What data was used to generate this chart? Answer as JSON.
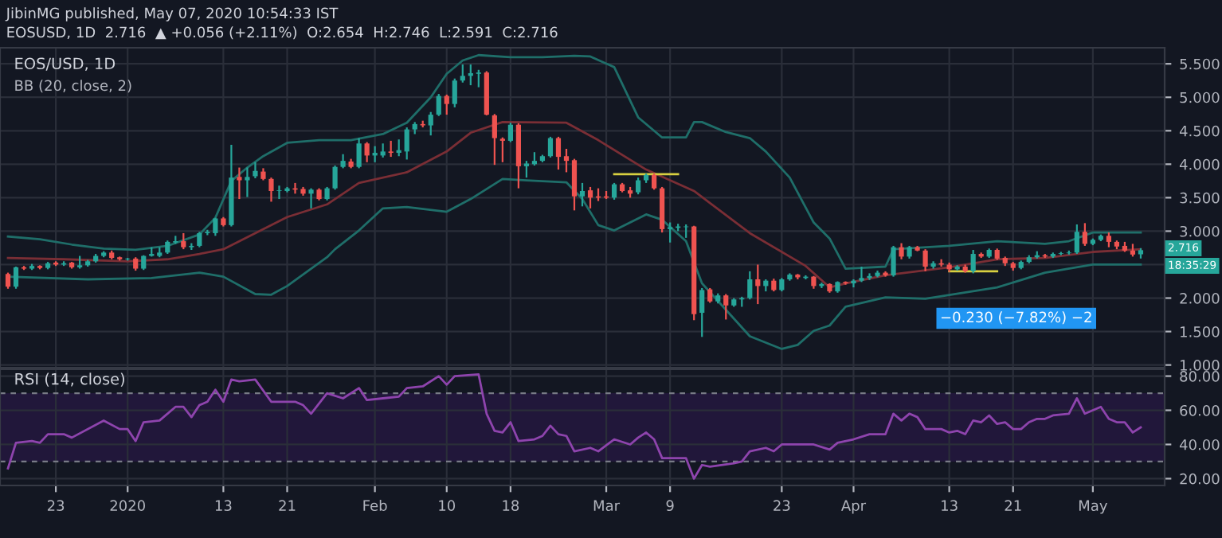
{
  "chart_data": [
    {
      "type": "candlestick",
      "title": "EOS/USD, 1D",
      "subtitle": "BB (20, close, 2)",
      "annotations": [
        "JibinMG published, May 07, 2020 10:54:33 IST",
        "EOSUSD, 1D  2.716  ▲ +0.056 (+2.11%)  O:2.654  H:2.746  L:2.591  C:2.716",
        "2.716",
        "18:35:29",
        "−0.230 (−7.82%) −2"
      ],
      "colors": [
        "#ef5350",
        "#26a69a",
        "#ef5350",
        "#26a69a",
        "#ef5350",
        "#26a69a",
        "#ef5350",
        "#26a69a",
        "#ef5350",
        "#26a69a",
        "#26a69a",
        "#26a69a",
        "#26a69a",
        "#ef5350",
        "#ef5350",
        "#26a69a",
        "#ef5350",
        "#26a69a",
        "#26a69a",
        "#26a69a",
        "#26a69a",
        "#26a69a",
        "#ef5350",
        "#26a69a",
        "#26a69a",
        "#26a69a",
        "#26a69a",
        "#ef5350",
        "#26a69a",
        "#ef5350",
        "#26a69a",
        "#26a69a",
        "#ef5350",
        "#ef5350",
        "#26a69a",
        "#26a69a",
        "#ef5350",
        "#ef5350",
        "#26a69a",
        "#ef5350",
        "#26a69a",
        "#26a69a",
        "#26a69a",
        "#ef5350",
        "#26a69a",
        "#ef5350",
        "#26a69a",
        "#26a69a",
        "#ef5350",
        "#26a69a",
        "#26a69a",
        "#26a69a",
        "#ef5350",
        "#26a69a",
        "#26a69a",
        "#ef5350",
        "#26a69a",
        "#26a69a",
        "#26a69a",
        "#26a69a",
        "#ef5350",
        "#ef5350",
        "#ef5350",
        "#26a69a",
        "#ef5350",
        "#26a69a",
        "#26a69a",
        "#26a69a",
        "#26a69a",
        "#ef5350",
        "#ef5350",
        "#ef5350",
        "#26a69a",
        "#ef5350",
        "#ef5350",
        "#ef5350",
        "#26a69a",
        "#ef5350",
        "#ef5350",
        "#26a69a",
        "#26a69a",
        "#ef5350",
        "#ef5350",
        "#26a69a",
        "#26a69a",
        "#26a69a",
        "#ef5350",
        "#26a69a",
        "#ef5350",
        "#26a69a",
        "#ef5350",
        "#26a69a",
        "#26a69a",
        "#26a69a",
        "#ef5350",
        "#26a69a",
        "#ef5350",
        "#26a69a",
        "#26a69a",
        "#ef5350",
        "#26a69a",
        "#ef5350",
        "#26a69a",
        "#ef5350",
        "#26a69a",
        "#ef5350",
        "#26a69a",
        "#26a69a",
        "#26a69a",
        "#26a69a",
        "#ef5350",
        "#26a69a",
        "#ef5350",
        "#26a69a",
        "#ef5350",
        "#ef5350",
        "#26a69a",
        "#ef5350",
        "#ef5350",
        "#26a69a",
        "#ef5350",
        "#26a69a",
        "#ef5350",
        "#26a69a",
        "#ef5350",
        "#ef5350",
        "#ef5350",
        "#26a69a",
        "#26a69a",
        "#26a69a",
        "#ef5350",
        "#26a69a",
        "#26a69a",
        "#26a69a",
        "#26a69a",
        "#ef5350",
        "#26a69a",
        "#26a69a",
        "#ef5350",
        "#ef5350",
        "#ef5350",
        "#ef5350",
        "#26a69a"
      ],
      "x": [
        "2019-12-17",
        "2019-12-18",
        "2019-12-19",
        "2019-12-20",
        "2019-12-21",
        "2019-12-22",
        "2019-12-23",
        "2019-12-24",
        "2019-12-25",
        "2019-12-26",
        "2019-12-27",
        "2019-12-28",
        "2019-12-29",
        "2019-12-30",
        "2019-12-31",
        "2020-01-01",
        "2020-01-02",
        "2020-01-03",
        "2020-01-04",
        "2020-01-05",
        "2020-01-06",
        "2020-01-07",
        "2020-01-08",
        "2020-01-09",
        "2020-01-10",
        "2020-01-11",
        "2020-01-12",
        "2020-01-13",
        "2020-01-14",
        "2020-01-15",
        "2020-01-16",
        "2020-01-17",
        "2020-01-18",
        "2020-01-19",
        "2020-01-20",
        "2020-01-21",
        "2020-01-22",
        "2020-01-23",
        "2020-01-24",
        "2020-01-25",
        "2020-01-26",
        "2020-01-27",
        "2020-01-28",
        "2020-01-29",
        "2020-01-30",
        "2020-01-31",
        "2020-02-01",
        "2020-02-02",
        "2020-02-03",
        "2020-02-04",
        "2020-02-05",
        "2020-02-06",
        "2020-02-07",
        "2020-02-08",
        "2020-02-09",
        "2020-02-10",
        "2020-02-11",
        "2020-02-12",
        "2020-02-13",
        "2020-02-14",
        "2020-02-15",
        "2020-02-16",
        "2020-02-17",
        "2020-02-18",
        "2020-02-19",
        "2020-02-20",
        "2020-02-21",
        "2020-02-22",
        "2020-02-23",
        "2020-02-24",
        "2020-02-25",
        "2020-02-26",
        "2020-02-27",
        "2020-02-28",
        "2020-02-29",
        "2020-03-01",
        "2020-03-02",
        "2020-03-03",
        "2020-03-04",
        "2020-03-05",
        "2020-03-06",
        "2020-03-07",
        "2020-03-08",
        "2020-03-09",
        "2020-03-10",
        "2020-03-11",
        "2020-03-12",
        "2020-03-13",
        "2020-03-14",
        "2020-03-15",
        "2020-03-16",
        "2020-03-17",
        "2020-03-18",
        "2020-03-19",
        "2020-03-20",
        "2020-03-21",
        "2020-03-22",
        "2020-03-23",
        "2020-03-24",
        "2020-03-25",
        "2020-03-26",
        "2020-03-27",
        "2020-03-28",
        "2020-03-29",
        "2020-03-30",
        "2020-03-31",
        "2020-04-01",
        "2020-04-02",
        "2020-04-03",
        "2020-04-04",
        "2020-04-05",
        "2020-04-06",
        "2020-04-07",
        "2020-04-08",
        "2020-04-09",
        "2020-04-10",
        "2020-04-11",
        "2020-04-12",
        "2020-04-13",
        "2020-04-14",
        "2020-04-15",
        "2020-04-16",
        "2020-04-17",
        "2020-04-18",
        "2020-04-19",
        "2020-04-20",
        "2020-04-21",
        "2020-04-22",
        "2020-04-23",
        "2020-04-24",
        "2020-04-25",
        "2020-04-26",
        "2020-04-27",
        "2020-04-28",
        "2020-04-29",
        "2020-04-30",
        "2020-05-01",
        "2020-05-02",
        "2020-05-03",
        "2020-05-04",
        "2020-05-05",
        "2020-05-06",
        "2020-05-07"
      ],
      "ohlc": [
        [
          2.36,
          2.38,
          2.14,
          2.17
        ],
        [
          2.17,
          2.47,
          2.14,
          2.46
        ],
        [
          2.46,
          2.48,
          2.42,
          2.44
        ],
        [
          2.44,
          2.51,
          2.42,
          2.48
        ],
        [
          2.48,
          2.49,
          2.43,
          2.45
        ],
        [
          2.45,
          2.54,
          2.43,
          2.52
        ],
        [
          2.53,
          2.55,
          2.48,
          2.5
        ],
        [
          2.5,
          2.55,
          2.48,
          2.52
        ],
        [
          2.53,
          2.54,
          2.44,
          2.46
        ],
        [
          2.46,
          2.63,
          2.44,
          2.49
        ],
        [
          2.49,
          2.57,
          2.47,
          2.55
        ],
        [
          2.55,
          2.66,
          2.53,
          2.63
        ],
        [
          2.63,
          2.7,
          2.61,
          2.68
        ],
        [
          2.68,
          2.71,
          2.58,
          2.6
        ],
        [
          2.61,
          2.62,
          2.56,
          2.58
        ],
        [
          2.58,
          2.6,
          2.56,
          2.59
        ],
        [
          2.59,
          2.61,
          2.41,
          2.44
        ],
        [
          2.44,
          2.64,
          2.42,
          2.63
        ],
        [
          2.63,
          2.76,
          2.62,
          2.66
        ],
        [
          2.63,
          2.76,
          2.61,
          2.68
        ],
        [
          2.68,
          2.86,
          2.66,
          2.84
        ],
        [
          2.83,
          2.93,
          2.81,
          2.85
        ],
        [
          2.85,
          2.97,
          2.73,
          2.76
        ],
        [
          2.76,
          2.82,
          2.72,
          2.78
        ],
        [
          2.78,
          2.99,
          2.76,
          2.97
        ],
        [
          2.97,
          3.02,
          2.94,
          2.99
        ],
        [
          2.97,
          3.2,
          2.93,
          3.19
        ],
        [
          3.19,
          3.21,
          3.07,
          3.09
        ],
        [
          3.09,
          4.29,
          3.07,
          3.8
        ],
        [
          3.81,
          3.95,
          3.48,
          3.76
        ],
        [
          3.76,
          3.95,
          3.51,
          3.81
        ],
        [
          3.82,
          4.03,
          3.79,
          3.9
        ],
        [
          3.89,
          3.94,
          3.76,
          3.78
        ],
        [
          3.78,
          3.8,
          3.44,
          3.6
        ],
        [
          3.6,
          3.68,
          3.48,
          3.61
        ],
        [
          3.6,
          3.66,
          3.58,
          3.64
        ],
        [
          3.64,
          3.72,
          3.56,
          3.62
        ],
        [
          3.63,
          3.66,
          3.53,
          3.56
        ],
        [
          3.56,
          3.64,
          3.34,
          3.62
        ],
        [
          3.62,
          3.64,
          3.46,
          3.48
        ],
        [
          3.48,
          3.66,
          3.46,
          3.64
        ],
        [
          3.64,
          3.98,
          3.62,
          3.96
        ],
        [
          3.96,
          4.15,
          3.94,
          4.05
        ],
        [
          4.04,
          4.08,
          3.94,
          3.96
        ],
        [
          3.96,
          4.39,
          3.94,
          4.31
        ],
        [
          4.31,
          4.33,
          4.03,
          4.13
        ],
        [
          4.13,
          4.27,
          4.03,
          4.17
        ],
        [
          4.13,
          4.31,
          4.1,
          4.19
        ],
        [
          4.19,
          4.35,
          4.11,
          4.17
        ],
        [
          4.17,
          4.37,
          4.12,
          4.21
        ],
        [
          4.19,
          4.55,
          4.07,
          4.52
        ],
        [
          4.52,
          4.63,
          4.45,
          4.6
        ],
        [
          4.6,
          4.65,
          4.55,
          4.58
        ],
        [
          4.58,
          4.78,
          4.43,
          4.74
        ],
        [
          4.74,
          5.05,
          4.72,
          5.02
        ],
        [
          5.02,
          5.04,
          4.74,
          4.9
        ],
        [
          4.9,
          5.28,
          4.85,
          5.25
        ],
        [
          5.25,
          5.49,
          5.22,
          5.32
        ],
        [
          5.32,
          5.49,
          5.18,
          5.36
        ],
        [
          5.35,
          5.41,
          5.15,
          5.37
        ],
        [
          5.37,
          5.39,
          4.73,
          4.74
        ],
        [
          4.73,
          4.75,
          3.99,
          4.39
        ],
        [
          4.38,
          4.4,
          4.03,
          4.35
        ],
        [
          4.35,
          4.62,
          4.33,
          4.59
        ],
        [
          4.59,
          4.61,
          3.64,
          3.97
        ],
        [
          3.97,
          4.05,
          3.8,
          4.01
        ],
        [
          4.0,
          4.18,
          3.98,
          4.05
        ],
        [
          4.05,
          4.14,
          4.03,
          4.12
        ],
        [
          4.12,
          4.41,
          4.1,
          4.39
        ],
        [
          4.39,
          4.41,
          3.92,
          4.11
        ],
        [
          4.12,
          4.23,
          3.88,
          4.05
        ],
        [
          4.06,
          4.08,
          3.31,
          3.52
        ],
        [
          3.52,
          3.72,
          3.37,
          3.6
        ],
        [
          3.61,
          3.66,
          3.34,
          3.5
        ],
        [
          3.52,
          3.64,
          3.45,
          3.5
        ],
        [
          3.52,
          3.6,
          3.48,
          3.5
        ],
        [
          3.5,
          3.72,
          3.47,
          3.7
        ],
        [
          3.7,
          3.72,
          3.58,
          3.6
        ],
        [
          3.61,
          3.66,
          3.5,
          3.56
        ],
        [
          3.58,
          3.8,
          3.55,
          3.76
        ],
        [
          3.76,
          3.86,
          3.72,
          3.84
        ],
        [
          3.84,
          3.86,
          3.62,
          3.64
        ],
        [
          3.64,
          3.66,
          2.98,
          3.03
        ],
        [
          3.03,
          3.13,
          2.83,
          3.06
        ],
        [
          3.05,
          3.11,
          3.0,
          3.07
        ],
        [
          3.06,
          3.1,
          2.9,
          3.07
        ],
        [
          3.07,
          3.08,
          1.67,
          1.76
        ],
        [
          1.78,
          2.15,
          1.42,
          2.12
        ],
        [
          2.13,
          2.15,
          1.93,
          1.95
        ],
        [
          1.95,
          2.07,
          1.92,
          2.04
        ],
        [
          2.04,
          2.06,
          1.68,
          1.89
        ],
        [
          1.89,
          2.0,
          1.87,
          1.98
        ],
        [
          1.98,
          2.02,
          1.87,
          2.0
        ],
        [
          2.0,
          2.4,
          1.98,
          2.28
        ],
        [
          2.28,
          2.5,
          1.91,
          2.18
        ],
        [
          2.18,
          2.28,
          2.1,
          2.26
        ],
        [
          2.26,
          2.29,
          2.1,
          2.12
        ],
        [
          2.12,
          2.3,
          2.1,
          2.28
        ],
        [
          2.28,
          2.37,
          2.26,
          2.35
        ],
        [
          2.35,
          2.36,
          2.28,
          2.31
        ],
        [
          2.3,
          2.34,
          2.28,
          2.32
        ],
        [
          2.32,
          2.33,
          2.14,
          2.18
        ],
        [
          2.18,
          2.23,
          2.15,
          2.21
        ],
        [
          2.21,
          2.22,
          2.08,
          2.1
        ],
        [
          2.1,
          2.25,
          2.08,
          2.24
        ],
        [
          2.24,
          2.25,
          2.2,
          2.22
        ],
        [
          2.22,
          2.28,
          2.16,
          2.26
        ],
        [
          2.26,
          2.47,
          2.24,
          2.3
        ],
        [
          2.3,
          2.37,
          2.27,
          2.33
        ],
        [
          2.33,
          2.41,
          2.31,
          2.38
        ],
        [
          2.38,
          2.4,
          2.32,
          2.34
        ],
        [
          2.34,
          2.78,
          2.32,
          2.76
        ],
        [
          2.76,
          2.82,
          2.58,
          2.62
        ],
        [
          2.62,
          2.78,
          2.59,
          2.76
        ],
        [
          2.76,
          2.78,
          2.7,
          2.71
        ],
        [
          2.71,
          2.73,
          2.4,
          2.47
        ],
        [
          2.47,
          2.55,
          2.44,
          2.52
        ],
        [
          2.52,
          2.58,
          2.47,
          2.5
        ],
        [
          2.5,
          2.53,
          2.39,
          2.43
        ],
        [
          2.43,
          2.49,
          2.41,
          2.47
        ],
        [
          2.47,
          2.5,
          2.38,
          2.4
        ],
        [
          2.4,
          2.72,
          2.37,
          2.66
        ],
        [
          2.66,
          2.68,
          2.6,
          2.62
        ],
        [
          2.62,
          2.74,
          2.6,
          2.72
        ],
        [
          2.72,
          2.74,
          2.57,
          2.59
        ],
        [
          2.6,
          2.62,
          2.48,
          2.52
        ],
        [
          2.52,
          2.54,
          2.41,
          2.45
        ],
        [
          2.45,
          2.56,
          2.43,
          2.54
        ],
        [
          2.54,
          2.64,
          2.52,
          2.61
        ],
        [
          2.61,
          2.7,
          2.59,
          2.64
        ],
        [
          2.64,
          2.66,
          2.6,
          2.62
        ],
        [
          2.62,
          2.68,
          2.6,
          2.66
        ],
        [
          2.66,
          2.69,
          2.64,
          2.67
        ],
        [
          2.67,
          2.71,
          2.65,
          2.68
        ],
        [
          2.68,
          3.1,
          2.66,
          2.99
        ],
        [
          2.99,
          3.12,
          2.78,
          2.81
        ],
        [
          2.81,
          2.89,
          2.79,
          2.87
        ],
        [
          2.87,
          2.95,
          2.85,
          2.93
        ],
        [
          2.93,
          2.98,
          2.76,
          2.84
        ],
        [
          2.84,
          2.86,
          2.73,
          2.77
        ],
        [
          2.78,
          2.84,
          2.69,
          2.71
        ],
        [
          2.71,
          2.81,
          2.62,
          2.65
        ],
        [
          2.654,
          2.746,
          2.591,
          2.716
        ]
      ],
      "series": [
        {
          "type": "line",
          "color": "#1f6e69",
          "x": [
            "2019-12-17",
            "2019-12-21",
            "2019-12-25",
            "2019-12-29",
            "2020-01-02",
            "2020-01-06",
            "2020-01-10",
            "2020-01-12",
            "2020-01-14",
            "2020-01-16",
            "2020-01-18",
            "2020-01-21",
            "2020-01-25",
            "2020-01-29",
            "2020-02-02",
            "2020-02-05",
            "2020-02-08",
            "2020-02-10",
            "2020-02-12",
            "2020-02-14",
            "2020-02-18",
            "2020-02-22",
            "2020-02-26",
            "2020-02-28",
            "2020-03-02",
            "2020-03-05",
            "2020-03-08",
            "2020-03-11",
            "2020-03-12",
            "2020-03-13",
            "2020-03-16",
            "2020-03-19",
            "2020-03-21",
            "2020-03-24",
            "2020-03-27",
            "2020-03-29",
            "2020-03-31",
            "2020-04-05",
            "2020-04-06",
            "2020-04-13",
            "2020-04-19",
            "2020-04-25",
            "2020-04-28",
            "2020-05-01",
            "2020-05-07"
          ],
          "values": [
            2.92,
            2.88,
            2.8,
            2.74,
            2.72,
            2.78,
            2.95,
            3.2,
            3.75,
            3.95,
            4.12,
            4.32,
            4.36,
            4.36,
            4.45,
            4.62,
            5.0,
            5.35,
            5.55,
            5.63,
            5.6,
            5.6,
            5.62,
            5.61,
            5.45,
            4.7,
            4.4,
            4.4,
            4.63,
            4.63,
            4.48,
            4.39,
            4.19,
            3.8,
            3.13,
            2.89,
            2.44,
            2.47,
            2.73,
            2.78,
            2.85,
            2.81,
            2.85,
            2.98,
            2.98
          ]
        },
        {
          "type": "line",
          "color": "#7a2e35",
          "x": [
            "2019-12-17",
            "2019-12-24",
            "2020-01-01",
            "2020-01-06",
            "2020-01-10",
            "2020-01-13",
            "2020-01-21",
            "2020-01-26",
            "2020-01-30",
            "2020-02-05",
            "2020-02-10",
            "2020-02-13",
            "2020-02-17",
            "2020-02-25",
            "2020-02-29",
            "2020-03-06",
            "2020-03-12",
            "2020-03-19",
            "2020-03-26",
            "2020-03-29",
            "2020-03-31",
            "2020-04-05",
            "2020-04-13",
            "2020-04-19",
            "2020-04-25",
            "2020-05-01",
            "2020-05-07"
          ],
          "values": [
            2.6,
            2.58,
            2.55,
            2.58,
            2.66,
            2.73,
            3.21,
            3.4,
            3.72,
            3.88,
            4.19,
            4.47,
            4.63,
            4.62,
            4.36,
            3.92,
            3.6,
            2.97,
            2.48,
            2.16,
            2.22,
            2.34,
            2.46,
            2.58,
            2.6,
            2.69,
            2.73
          ]
        },
        {
          "type": "line",
          "color": "#1f6e69",
          "x": [
            "2019-12-17",
            "2019-12-27",
            "2020-01-04",
            "2020-01-10",
            "2020-01-13",
            "2020-01-17",
            "2020-01-19",
            "2020-01-21",
            "2020-01-26",
            "2020-01-27",
            "2020-01-30",
            "2020-02-02",
            "2020-02-05",
            "2020-02-10",
            "2020-02-13",
            "2020-02-17",
            "2020-02-20",
            "2020-02-25",
            "2020-02-27",
            "2020-02-29",
            "2020-03-02",
            "2020-03-06",
            "2020-03-08",
            "2020-03-11",
            "2020-03-13",
            "2020-03-19",
            "2020-03-23",
            "2020-03-25",
            "2020-03-27",
            "2020-03-29",
            "2020-03-31",
            "2020-04-05",
            "2020-04-10",
            "2020-04-19",
            "2020-04-25",
            "2020-05-01",
            "2020-05-07"
          ],
          "values": [
            2.32,
            2.28,
            2.3,
            2.38,
            2.32,
            2.06,
            2.05,
            2.18,
            2.61,
            2.73,
            3.01,
            3.34,
            3.36,
            3.29,
            3.48,
            3.78,
            3.76,
            3.73,
            3.48,
            3.09,
            3.01,
            3.25,
            3.17,
            2.85,
            2.22,
            1.43,
            1.24,
            1.3,
            1.51,
            1.59,
            1.87,
            2.01,
            1.99,
            2.16,
            2.38,
            2.5,
            2.5
          ]
        },
        {
          "type": "line",
          "color": "#d8d040",
          "x": [
            "2020-03-02",
            "2020-03-10"
          ],
          "values": [
            3.85,
            3.85
          ]
        },
        {
          "type": "line",
          "color": "#d8d040",
          "x": [
            "2020-04-13",
            "2020-04-19"
          ],
          "values": [
            2.4,
            2.4
          ]
        }
      ],
      "xlim": [
        "2019-12-16",
        "2020-05-10"
      ],
      "xticks": [
        {
          "value": "2019-12-23",
          "label": null
        },
        {
          "value": "2020-01-01",
          "label": null
        },
        {
          "value": "2020-01-13",
          "label": null
        },
        {
          "value": "2020-01-21",
          "label": null
        },
        {
          "value": "2020-02-01",
          "label": null
        },
        {
          "value": "2020-02-10",
          "label": null
        },
        {
          "value": "2020-02-18",
          "label": null
        },
        {
          "value": "2020-03-01",
          "label": null
        },
        {
          "value": "2020-03-09",
          "label": null
        },
        {
          "value": "2020-03-23",
          "label": null
        },
        {
          "value": "2020-04-01",
          "label": null
        },
        {
          "value": "2020-04-13",
          "label": null
        },
        {
          "value": "2020-04-21",
          "label": null
        },
        {
          "value": "2020-05-01",
          "label": null
        }
      ],
      "ylim": [
        0.96,
        5.74
      ],
      "yticks": [
        {
          "value": 1.0,
          "label": "1.000"
        },
        {
          "value": 1.5,
          "label": "1.500"
        },
        {
          "value": 2.0,
          "label": "2.000"
        },
        {
          "value": 2.5,
          "label": null
        },
        {
          "value": 3.0,
          "label": "3.000"
        },
        {
          "value": 3.5,
          "label": "3.500"
        },
        {
          "value": 4.0,
          "label": "4.000"
        },
        {
          "value": 4.5,
          "label": "4.500"
        },
        {
          "value": 5.0,
          "label": "5.000"
        },
        {
          "value": 5.5,
          "label": "5.500"
        }
      ],
      "tick_labels": "y",
      "grid": true
    },
    {
      "type": "line",
      "title": "RSI (14, close)",
      "series": [
        {
          "color": "#8e44ad",
          "x": [
            "2019-12-17",
            "2019-12-18",
            "2019-12-20",
            "2019-12-21",
            "2019-12-22",
            "2019-12-24",
            "2019-12-25",
            "2019-12-29",
            "2019-12-31",
            "2020-01-01",
            "2020-01-02",
            "2020-01-03",
            "2020-01-05",
            "2020-01-07",
            "2020-01-08",
            "2020-01-09",
            "2020-01-10",
            "2020-01-11",
            "2020-01-12",
            "2020-01-13",
            "2020-01-14",
            "2020-01-15",
            "2020-01-17",
            "2020-01-19",
            "2020-01-22",
            "2020-01-23",
            "2020-01-24",
            "2020-01-26",
            "2020-01-28",
            "2020-01-30",
            "2020-01-31",
            "2020-02-02",
            "2020-02-04",
            "2020-02-05",
            "2020-02-07",
            "2020-02-09",
            "2020-02-10",
            "2020-02-11",
            "2020-02-14",
            "2020-02-15",
            "2020-02-16",
            "2020-02-17",
            "2020-02-18",
            "2020-02-19",
            "2020-02-21",
            "2020-02-22",
            "2020-02-23",
            "2020-02-24",
            "2020-02-25",
            "2020-02-26",
            "2020-02-28",
            "2020-02-29",
            "2020-03-02",
            "2020-03-04",
            "2020-03-05",
            "2020-03-06",
            "2020-03-07",
            "2020-03-08",
            "2020-03-11",
            "2020-03-12",
            "2020-03-13",
            "2020-03-14",
            "2020-03-17",
            "2020-03-18",
            "2020-03-19",
            "2020-03-21",
            "2020-03-22",
            "2020-03-23",
            "2020-03-25",
            "2020-03-27",
            "2020-03-29",
            "2020-03-30",
            "2020-04-01",
            "2020-04-03",
            "2020-04-05",
            "2020-04-06",
            "2020-04-07",
            "2020-04-08",
            "2020-04-09",
            "2020-04-10",
            "2020-04-12",
            "2020-04-13",
            "2020-04-14",
            "2020-04-15",
            "2020-04-16",
            "2020-04-17",
            "2020-04-18",
            "2020-04-19",
            "2020-04-20",
            "2020-04-21",
            "2020-04-22",
            "2020-04-23",
            "2020-04-24",
            "2020-04-25",
            "2020-04-26",
            "2020-04-28",
            "2020-04-29",
            "2020-04-30",
            "2020-05-02",
            "2020-05-03",
            "2020-05-04",
            "2020-05-05",
            "2020-05-06",
            "2020-05-07"
          ],
          "values": [
            26,
            41,
            42,
            41,
            46,
            46,
            44,
            54,
            49,
            49,
            42,
            53,
            54,
            62,
            62,
            56,
            63,
            65,
            72,
            65,
            78,
            77,
            78,
            65,
            65,
            63,
            58,
            70,
            67,
            73,
            66,
            67,
            68,
            73,
            74,
            80,
            75,
            80,
            81,
            58,
            48,
            47,
            53,
            42,
            43,
            45,
            51,
            46,
            45,
            36,
            38,
            36,
            43,
            40,
            44,
            47,
            43,
            32,
            32,
            20,
            28,
            27,
            29,
            30,
            36,
            38,
            36,
            40,
            40,
            40,
            37,
            41,
            43,
            46,
            46,
            58,
            54,
            58,
            56,
            49,
            49,
            47,
            48,
            46,
            54,
            53,
            57,
            52,
            53,
            49,
            49,
            53,
            55,
            55,
            57,
            58,
            67,
            58,
            62,
            55,
            53,
            53,
            47,
            50
          ]
        }
      ],
      "bands": [
        {
          "axis": "y",
          "from": 30,
          "to": 70,
          "color": "#21173a"
        }
      ],
      "ref_lines": [
        {
          "axis": "y",
          "value": 70,
          "color": "#787b86",
          "line_style": "dashed"
        },
        {
          "axis": "y",
          "value": 30,
          "color": "#787b86",
          "line_style": "dashed"
        }
      ],
      "xlim": [
        "2019-12-16",
        "2020-05-10"
      ],
      "xticks": [
        {
          "value": "2019-12-23",
          "label": "23"
        },
        {
          "value": "2020-01-01",
          "label": "2020"
        },
        {
          "value": "2020-01-13",
          "label": "13"
        },
        {
          "value": "2020-01-21",
          "label": "21"
        },
        {
          "value": "2020-02-01",
          "label": "Feb"
        },
        {
          "value": "2020-02-10",
          "label": "10"
        },
        {
          "value": "2020-02-18",
          "label": "18"
        },
        {
          "value": "2020-03-01",
          "label": "Mar"
        },
        {
          "value": "2020-03-09",
          "label": "9"
        },
        {
          "value": "2020-03-23",
          "label": "23"
        },
        {
          "value": "2020-04-01",
          "label": "Apr"
        },
        {
          "value": "2020-04-13",
          "label": "13"
        },
        {
          "value": "2020-04-21",
          "label": "21"
        },
        {
          "value": "2020-05-01",
          "label": "May"
        }
      ],
      "ylim": [
        16,
        84
      ],
      "yticks": [
        {
          "value": 20,
          "label": "20.00"
        },
        {
          "value": 40,
          "label": "40.00"
        },
        {
          "value": 60,
          "label": "60.00"
        },
        {
          "value": 80,
          "label": "80.00"
        }
      ],
      "grid": true
    }
  ]
}
